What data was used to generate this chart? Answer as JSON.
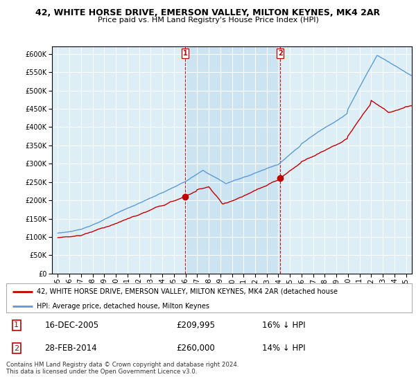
{
  "title": "42, WHITE HORSE DRIVE, EMERSON VALLEY, MILTON KEYNES, MK4 2AR",
  "subtitle": "Price paid vs. HM Land Registry's House Price Index (HPI)",
  "legend_line1": "42, WHITE HORSE DRIVE, EMERSON VALLEY, MILTON KEYNES, MK4 2AR (detached house",
  "legend_line2": "HPI: Average price, detached house, Milton Keynes",
  "annotation1_label": "1",
  "annotation1_date": "16-DEC-2005",
  "annotation1_price": "£209,995",
  "annotation1_hpi": "16% ↓ HPI",
  "annotation2_label": "2",
  "annotation2_date": "28-FEB-2014",
  "annotation2_price": "£260,000",
  "annotation2_hpi": "14% ↓ HPI",
  "footnote": "Contains HM Land Registry data © Crown copyright and database right 2024.\nThis data is licensed under the Open Government Licence v3.0.",
  "hpi_color": "#5b9bd5",
  "price_color": "#c00000",
  "marker1_x": 2005.958,
  "marker1_y": 209995,
  "marker2_x": 2014.167,
  "marker2_y": 260000,
  "ylim": [
    0,
    620000
  ],
  "yticks": [
    0,
    50000,
    100000,
    150000,
    200000,
    250000,
    300000,
    350000,
    400000,
    450000,
    500000,
    550000,
    600000
  ],
  "xlim": [
    1994.5,
    2025.5
  ],
  "background_color": "#ddeef7",
  "shade_color": "#c5dff0"
}
